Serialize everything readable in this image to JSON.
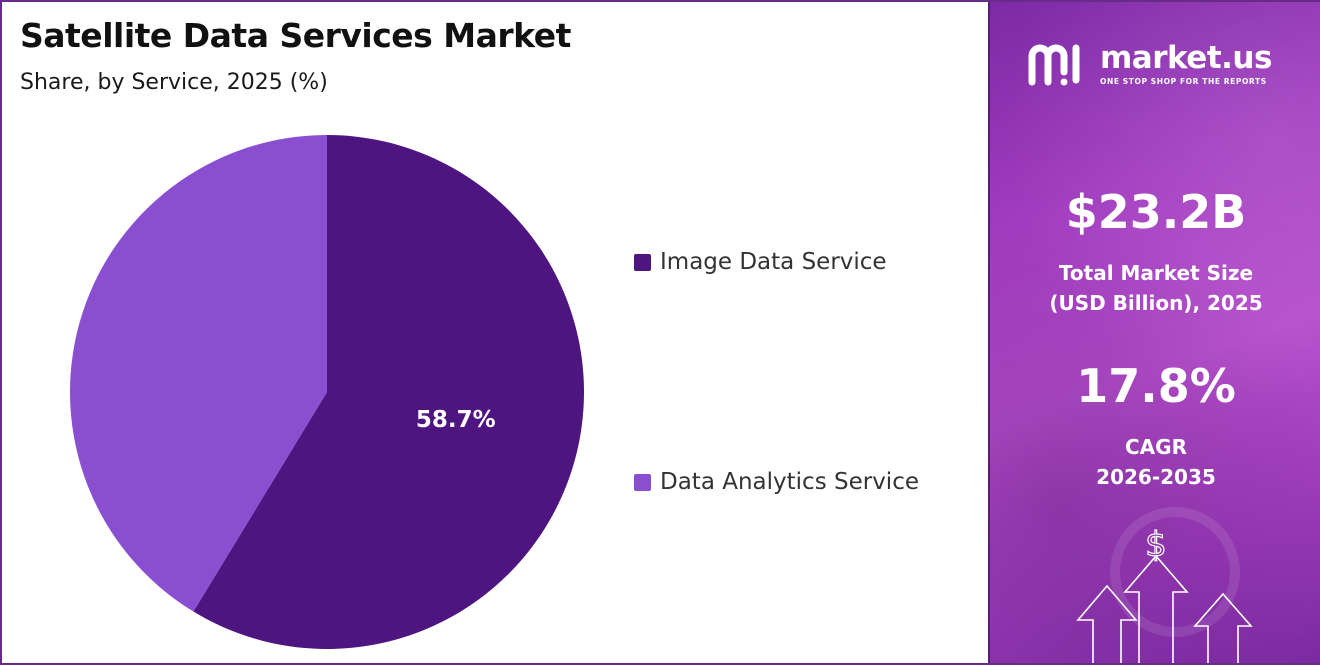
{
  "chart_data": {
    "type": "pie",
    "title": "Satellite Data Services Market",
    "subtitle": "Share, by Service, 2025 (%)",
    "slices": [
      {
        "name": "Image Data Service",
        "value": 58.7,
        "color": "#4e1480",
        "label": "58.7%"
      },
      {
        "name": "Data Analytics Service",
        "value": 41.3,
        "color": "#8a4fd1",
        "label": ""
      }
    ],
    "legend": "right",
    "start_angle_deg": 0,
    "direction": "clockwise"
  },
  "brand": {
    "name": "market.us",
    "tagline": "ONE STOP SHOP FOR THE REPORTS",
    "icon": "market-us-logo-icon"
  },
  "stats": {
    "market_size_value": "$23.2B",
    "market_size_label_1": "Total Market Size",
    "market_size_label_2": "(USD Billion), 2025",
    "cagr_value": "17.8%",
    "cagr_label_1": "CAGR",
    "cagr_label_2": "2026-2035"
  },
  "decor": {
    "dollar_symbol": "$",
    "icons": [
      "dollar-icon",
      "up-arrow-icon"
    ]
  },
  "colors": {
    "panel_purple": "#a23cc0",
    "frame": "#6a2a8a"
  }
}
